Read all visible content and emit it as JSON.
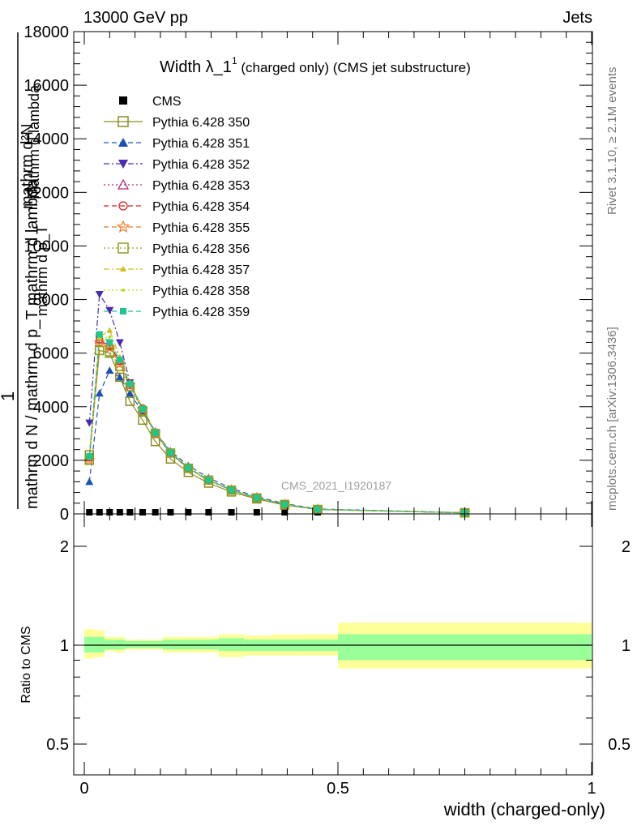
{
  "header": {
    "left": "13000 GeV pp",
    "right": "Jets"
  },
  "side": {
    "rivet": "Rivet 3.1.10, ≥ 2.1M events",
    "mcplots": "mcplots.cern.ch [arXiv:1306.3436]"
  },
  "watermark": "CMS_2021_I1920187",
  "chart_data": [
    {
      "type": "line",
      "title_main": "Width λ_1",
      "title_sup": "1",
      "title_suffix": " (charged only) (CMS jet substructure)",
      "ylabel_parts": [
        "mathrm d²N",
        "1",
        "mathrm d N / mathrm d p_T mathrm d lambda",
        "mathrm d p_T",
        "mathrm d lambda"
      ],
      "ylim": [
        0,
        18000
      ],
      "xlim": [
        0,
        1
      ],
      "yticks": [
        0,
        2000,
        4000,
        6000,
        8000,
        10000,
        12000,
        14000,
        16000,
        18000
      ],
      "ytick_labels": [
        "0",
        "2000",
        "4000",
        "6000",
        "8000",
        "10000",
        "12000",
        "14000",
        "16000",
        "18000"
      ],
      "x": [
        0.01,
        0.03,
        0.05,
        0.07,
        0.09,
        0.115,
        0.14,
        0.17,
        0.205,
        0.245,
        0.29,
        0.34,
        0.395,
        0.46,
        0.75
      ],
      "series": [
        {
          "name": "CMS",
          "color": "#000000",
          "marker": "square-filled",
          "dash": "none",
          "values": [
            5,
            5,
            5,
            5,
            5,
            5,
            5,
            5,
            5,
            5,
            5,
            5,
            5,
            5,
            5
          ]
        },
        {
          "name": "Pythia 6.428 350",
          "color": "#8c8c1e",
          "marker": "square-open",
          "dash": "solid",
          "values": [
            2200,
            6100,
            6000,
            5100,
            4200,
            3500,
            2700,
            2050,
            1550,
            1150,
            820,
            560,
            330,
            160,
            40
          ]
        },
        {
          "name": "Pythia 6.428 351",
          "color": "#1c50b4",
          "marker": "triangle-up-filled",
          "dash": "dashed",
          "values": [
            1200,
            4500,
            5350,
            5100,
            4500,
            3800,
            3050,
            2350,
            1800,
            1350,
            950,
            640,
            380,
            180,
            45
          ]
        },
        {
          "name": "Pythia 6.428 352",
          "color": "#4a2ab0",
          "marker": "triangle-down-filled",
          "dash": "dashdot",
          "values": [
            3400,
            8200,
            7600,
            6400,
            4900,
            3900,
            3000,
            2250,
            1700,
            1250,
            880,
            590,
            350,
            165,
            40
          ]
        },
        {
          "name": "Pythia 6.428 353",
          "color": "#b4287a",
          "marker": "triangle-up-open",
          "dash": "dotted",
          "values": [
            2100,
            6500,
            6300,
            5700,
            4800,
            3900,
            3050,
            2300,
            1720,
            1270,
            890,
            600,
            355,
            168,
            42
          ]
        },
        {
          "name": "Pythia 6.428 354",
          "color": "#d41e1e",
          "marker": "circle-open",
          "dash": "dashed",
          "values": [
            2100,
            6500,
            6250,
            5700,
            4850,
            3950,
            3050,
            2300,
            1720,
            1270,
            890,
            600,
            355,
            168,
            42
          ]
        },
        {
          "name": "Pythia 6.428 355",
          "color": "#f07820",
          "marker": "star-open",
          "dash": "dashed",
          "values": [
            2000,
            6400,
            6200,
            5600,
            4800,
            3900,
            3000,
            2270,
            1700,
            1260,
            885,
            595,
            352,
            166,
            41
          ]
        },
        {
          "name": "Pythia 6.428 356",
          "color": "#8ca01e",
          "marker": "square-open",
          "dash": "dotted",
          "values": [
            2000,
            6100,
            6050,
            5500,
            4750,
            3850,
            3000,
            2270,
            1700,
            1260,
            885,
            595,
            352,
            166,
            41
          ]
        },
        {
          "name": "Pythia 6.428 357",
          "color": "#d2be1e",
          "marker": "tri-small",
          "dash": "dashdot",
          "values": [
            2150,
            6600,
            6850,
            5850,
            4900,
            3950,
            3050,
            2300,
            1720,
            1270,
            890,
            600,
            355,
            168,
            42
          ]
        },
        {
          "name": "Pythia 6.428 358",
          "color": "#b4dc28",
          "marker": "dot",
          "dash": "dotted",
          "values": [
            2100,
            6550,
            6600,
            5800,
            4850,
            3920,
            3030,
            2290,
            1715,
            1265,
            888,
            598,
            354,
            167,
            42
          ]
        },
        {
          "name": "Pythia 6.428 359",
          "color": "#1ec88c",
          "marker": "square-filled-small",
          "dash": "dashed",
          "values": [
            2150,
            6700,
            6400,
            5750,
            4850,
            3920,
            3030,
            2290,
            1715,
            1265,
            888,
            598,
            354,
            167,
            42
          ]
        }
      ]
    },
    {
      "type": "area",
      "ylabel": "Ratio to CMS",
      "xlabel": "width (charged-only)",
      "ylim": [
        0.4,
        2.35
      ],
      "log_y": true,
      "xlim": [
        0,
        1
      ],
      "yticks": [
        0.5,
        1,
        2
      ],
      "ytick_labels": [
        "0.5",
        "1",
        "2"
      ],
      "xticks": [
        0,
        0.5,
        1
      ],
      "xtick_labels": [
        "0",
        "0.5",
        "1"
      ],
      "band_colors": {
        "stat": "#99ff99",
        "total": "#ffff99",
        "reference": "#000000"
      },
      "bins": [
        {
          "x": [
            0,
            0.02
          ],
          "inner": [
            0.95,
            1.06
          ],
          "outer": [
            0.91,
            1.12
          ]
        },
        {
          "x": [
            0.02,
            0.04
          ],
          "inner": [
            0.95,
            1.06
          ],
          "outer": [
            0.92,
            1.11
          ]
        },
        {
          "x": [
            0.04,
            0.06
          ],
          "inner": [
            0.97,
            1.04
          ],
          "outer": [
            0.96,
            1.06
          ]
        },
        {
          "x": [
            0.06,
            0.08
          ],
          "inner": [
            0.97,
            1.04
          ],
          "outer": [
            0.95,
            1.06
          ]
        },
        {
          "x": [
            0.08,
            0.1
          ],
          "inner": [
            0.98,
            1.03
          ],
          "outer": [
            0.97,
            1.04
          ]
        },
        {
          "x": [
            0.1,
            0.13
          ],
          "inner": [
            0.98,
            1.03
          ],
          "outer": [
            0.97,
            1.04
          ]
        },
        {
          "x": [
            0.13,
            0.155
          ],
          "inner": [
            0.98,
            1.03
          ],
          "outer": [
            0.97,
            1.04
          ]
        },
        {
          "x": [
            0.155,
            0.185
          ],
          "inner": [
            0.97,
            1.04
          ],
          "outer": [
            0.95,
            1.06
          ]
        },
        {
          "x": [
            0.185,
            0.225
          ],
          "inner": [
            0.97,
            1.04
          ],
          "outer": [
            0.95,
            1.06
          ]
        },
        {
          "x": [
            0.225,
            0.265
          ],
          "inner": [
            0.97,
            1.04
          ],
          "outer": [
            0.95,
            1.06
          ]
        },
        {
          "x": [
            0.265,
            0.315
          ],
          "inner": [
            0.96,
            1.05
          ],
          "outer": [
            0.92,
            1.08
          ]
        },
        {
          "x": [
            0.315,
            0.37
          ],
          "inner": [
            0.96,
            1.04
          ],
          "outer": [
            0.93,
            1.07
          ]
        },
        {
          "x": [
            0.37,
            0.43
          ],
          "inner": [
            0.96,
            1.04
          ],
          "outer": [
            0.93,
            1.08
          ]
        },
        {
          "x": [
            0.43,
            0.5
          ],
          "inner": [
            0.96,
            1.04
          ],
          "outer": [
            0.93,
            1.08
          ]
        },
        {
          "x": [
            0.5,
            1.0
          ],
          "inner": [
            0.9,
            1.08
          ],
          "outer": [
            0.85,
            1.17
          ]
        }
      ]
    }
  ]
}
